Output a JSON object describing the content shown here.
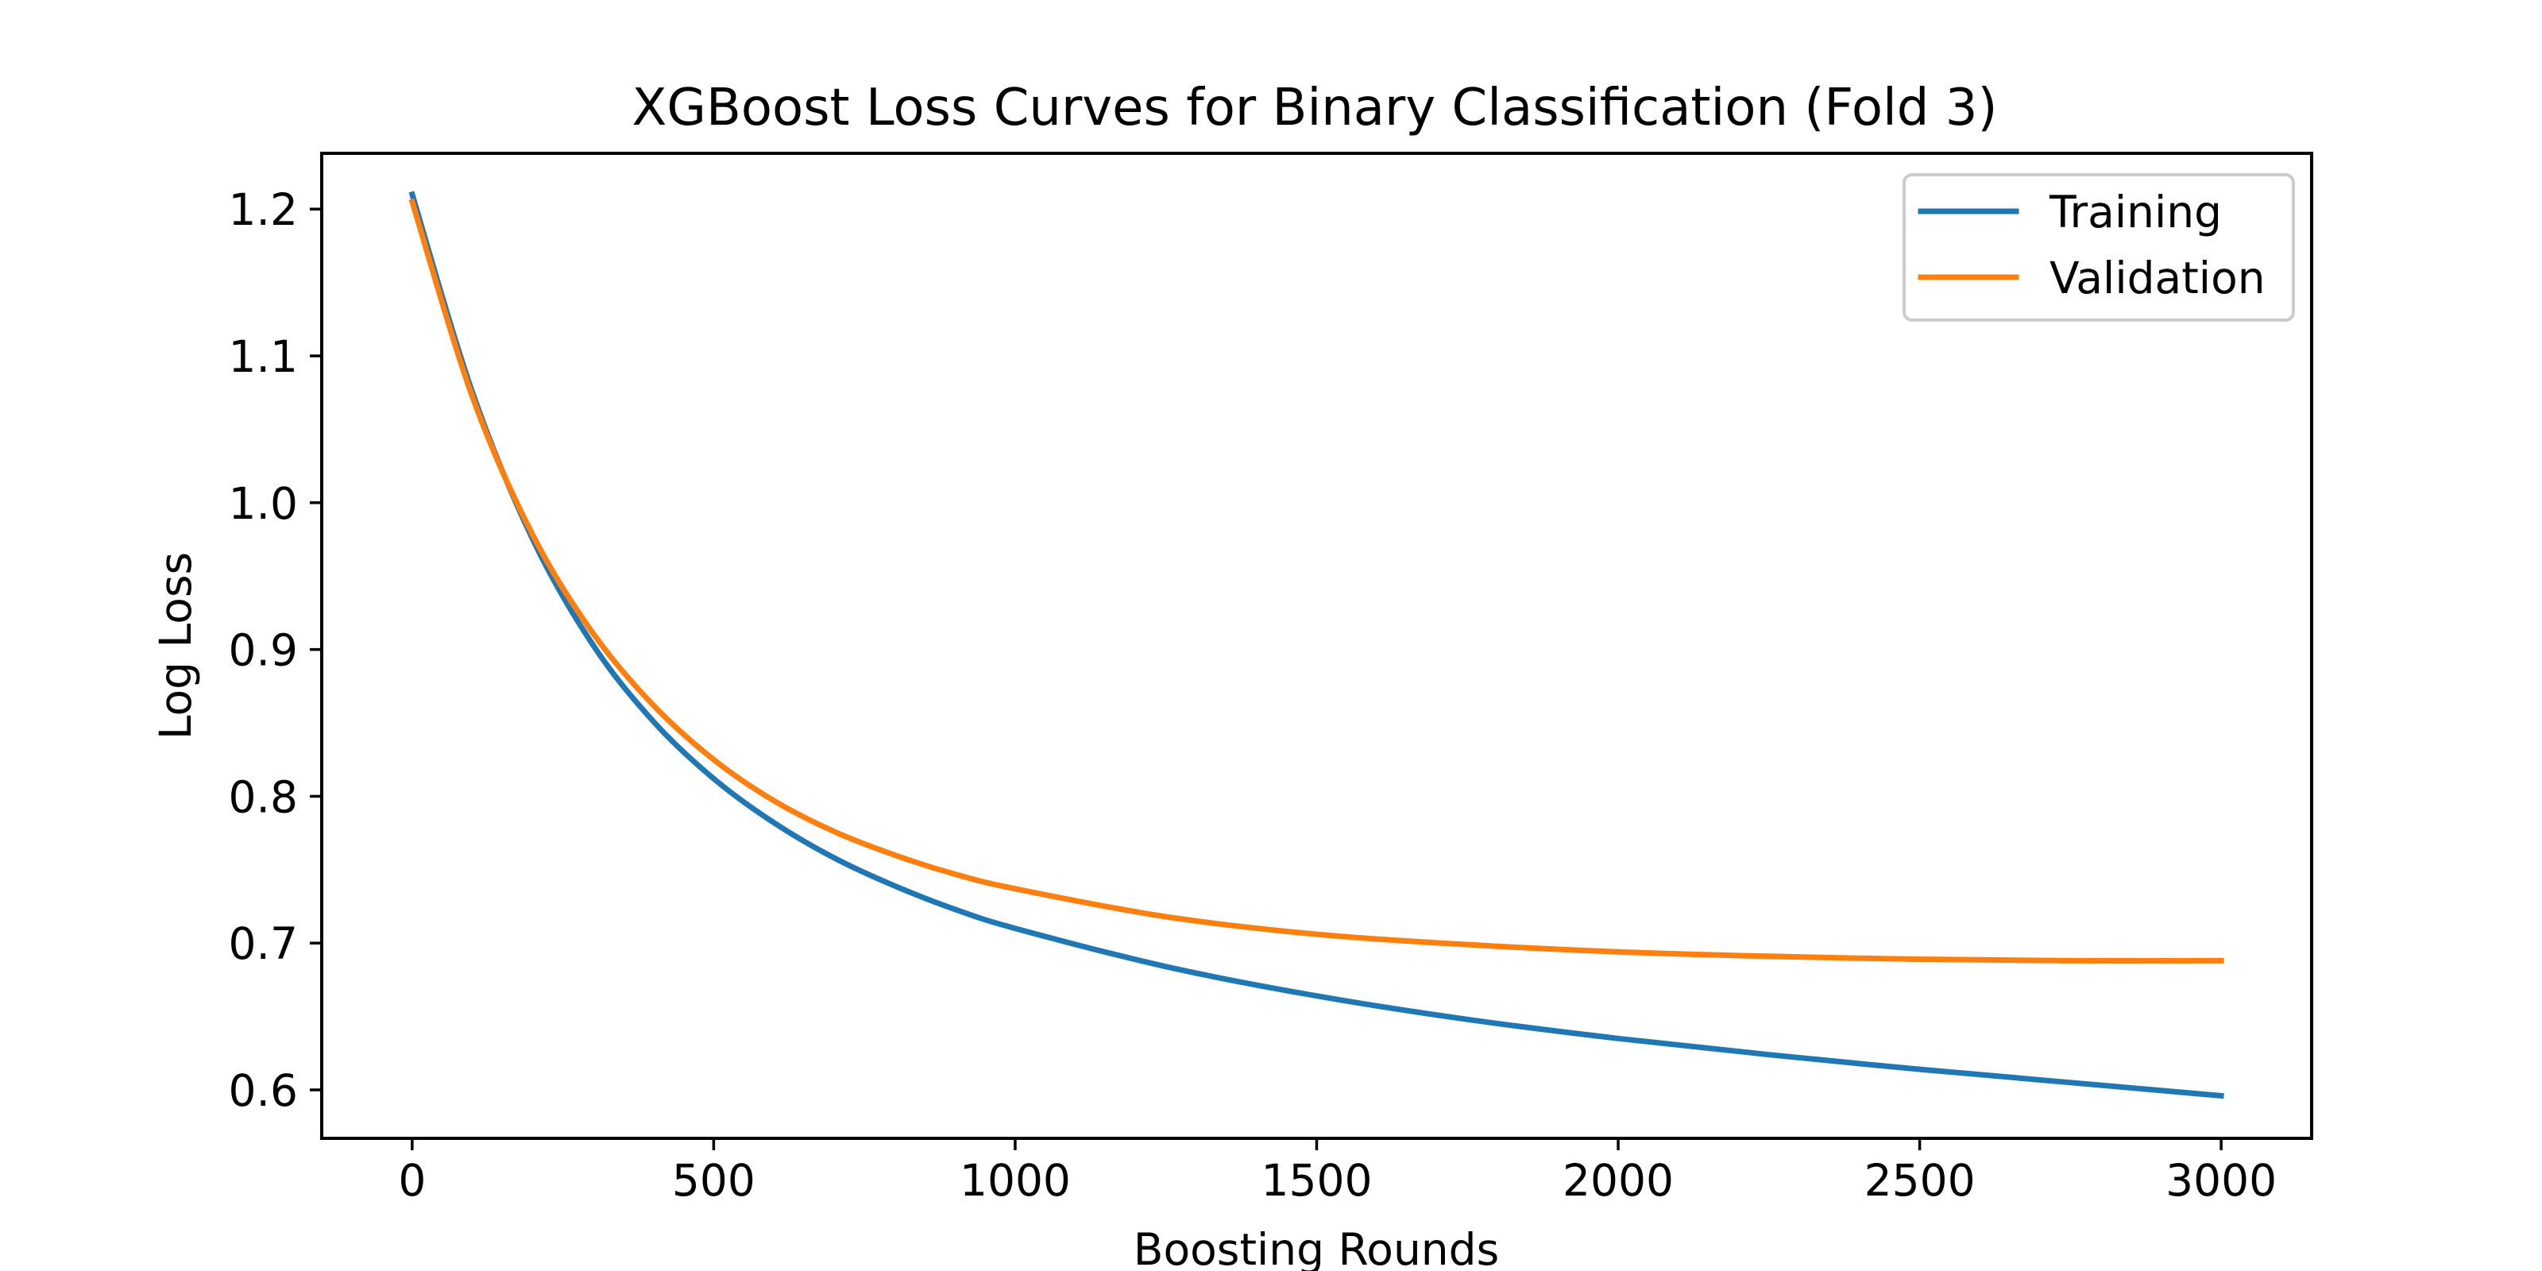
{
  "chart_data": {
    "type": "line",
    "title": "XGBoost Loss Curves for Binary Classification (Fold 3)",
    "xlabel": "Boosting Rounds",
    "ylabel": "Log Loss",
    "xlim": [
      -150,
      3150
    ],
    "ylim": [
      0.567,
      1.238
    ],
    "x_ticks": [
      0,
      500,
      1000,
      1500,
      2000,
      2500,
      3000
    ],
    "y_ticks": [
      0.6,
      0.7,
      0.8,
      0.9,
      1.0,
      1.1,
      1.2
    ],
    "x_tick_labels": [
      "0",
      "500",
      "1000",
      "1500",
      "2000",
      "2500",
      "3000"
    ],
    "y_tick_labels": [
      "0.6",
      "0.7",
      "0.8",
      "0.9",
      "1.0",
      "1.1",
      "1.2"
    ],
    "grid": false,
    "legend_position": "top-right",
    "x": [
      0,
      100,
      200,
      300,
      400,
      500,
      600,
      700,
      800,
      900,
      1000,
      1250,
      1500,
      1750,
      2000,
      2250,
      2500,
      2750,
      3000
    ],
    "series": [
      {
        "name": "Training",
        "color": "#1f77b4",
        "values": [
          1.21,
          1.075,
          0.975,
          0.903,
          0.851,
          0.812,
          0.782,
          0.758,
          0.739,
          0.723,
          0.71,
          0.684,
          0.664,
          0.648,
          0.635,
          0.624,
          0.614,
          0.605,
          0.596
        ]
      },
      {
        "name": "Validation",
        "color": "#ff7f0e",
        "values": [
          1.205,
          1.072,
          0.978,
          0.911,
          0.862,
          0.825,
          0.797,
          0.776,
          0.76,
          0.747,
          0.737,
          0.718,
          0.706,
          0.699,
          0.694,
          0.691,
          0.689,
          0.688,
          0.688
        ]
      }
    ]
  }
}
